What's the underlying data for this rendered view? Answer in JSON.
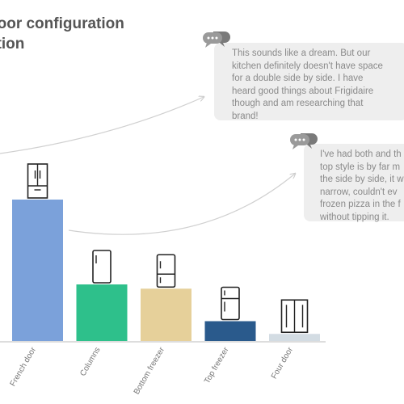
{
  "title": {
    "line1": "door configuration",
    "line2": "ation"
  },
  "quotes": [
    {
      "text": "This sounds like a dream. But our\nkitchen definitely doesn't have space\nfor a double side by side. I have\nheard good things about Frigidaire\nthough and am researching that\nbrand!",
      "icon": "chat-bubble-icon"
    },
    {
      "text": "I've had both and th\ntop style is by far m\nthe side by side, it w\nnarrow, couldn't ev\nfrozen pizza in the f\nwithout tipping it.",
      "icon": "chat-bubble-icon"
    }
  ],
  "chart_data": {
    "type": "bar",
    "categories": [
      "French door",
      "Columns",
      "Bottom freezer",
      "Top freezer",
      "Four door"
    ],
    "values": [
      100,
      40,
      37,
      14,
      5
    ],
    "ylim": [
      0,
      100
    ],
    "grid": false,
    "colors": [
      "#7ba1da",
      "#2ec08b",
      "#e6d09a",
      "#2a5a8c",
      "#d3dce3"
    ],
    "icons": [
      "french-door-fridge-icon",
      "column-fridge-icon",
      "bottom-freezer-fridge-icon",
      "top-freezer-fridge-icon",
      "four-door-fridge-icon"
    ]
  }
}
